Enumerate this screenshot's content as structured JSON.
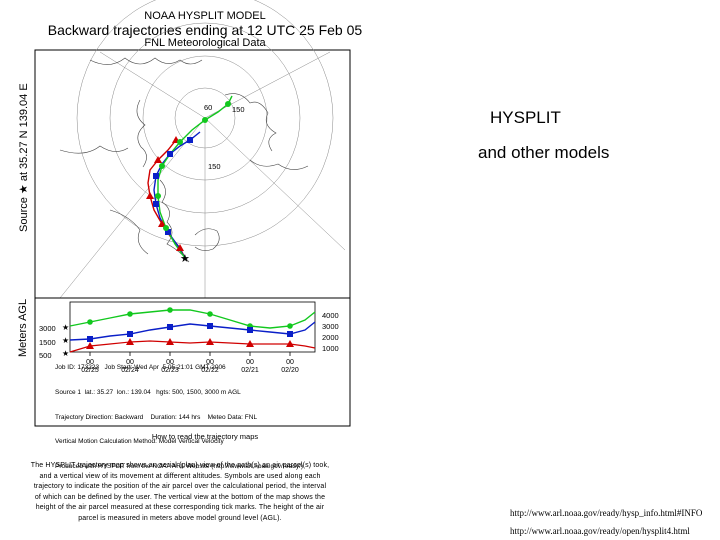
{
  "chart": {
    "title_line1": "NOAA HYSPLIT MODEL",
    "title_line2": "Backward trajectories ending at 12 UTC 25 Feb 05",
    "title_line3": "FNL  Meteorological Data",
    "side_label_source": "Source ★ at 35.27 N 139.04 E",
    "side_label_agl": "Meters AGL",
    "map_labels": [
      "150",
      "150",
      "60"
    ],
    "left_axis_labels": [
      "3000",
      "1500",
      "500"
    ],
    "right_axis_labels": [
      "4000",
      "3000",
      "2000",
      "1000"
    ],
    "date_ticks": [
      {
        "top": "00",
        "bottom": "02/25"
      },
      {
        "top": "00",
        "bottom": "02/24"
      },
      {
        "top": "00",
        "bottom": "02/23"
      },
      {
        "top": "00",
        "bottom": "02/22"
      },
      {
        "top": "00",
        "bottom": "02/21"
      },
      {
        "top": "00",
        "bottom": "02/20"
      }
    ],
    "metadata_lines": [
      "Job ID: 173223   Job Start: Wed Apr  5 05:21:01 GMT 2006",
      "Source 1  lat.: 35.27  lon.: 139.04   hgts: 500, 1500, 3000 m AGL",
      "Trajectory Direction: Backward    Duration: 144 hrs    Meteo Data: FNL",
      "Vertical Motion Calculation Method: Model Vertical Velocity",
      "Produced with HYSPLIT from the NOAA ARL Website (http://www.arl.noaa.gov/ready/)"
    ]
  },
  "series_colors": {
    "red": "#d00000",
    "blue": "#0a1fc8",
    "green": "#12c81e",
    "source": "#000000"
  },
  "slide": {
    "title": "HYSPLIT",
    "subtitle": "and other models"
  },
  "howto": {
    "heading": "How to read the trajectory maps",
    "body": "The HYSPLIT trajectory map shows an aerial (plan) view of the path(s) an air parcel(s) took, and a vertical view of its movement at different altitudes. Symbols are used along each trajectory to indicate the position of the air parcel over the calculational period, the interval of which can be defined by the user. The vertical view at the bottom of the map shows the height of the air parcel measured at these corresponding tick marks. The height of the air parcel is measured in meters above model ground level (AGL)."
  },
  "links": {
    "url1": "http://www.arl.noaa.gov/ready/hysp_info.html#INFO",
    "url2": "http://www.arl.noaa.gov/ready/open/hysplit4.html"
  }
}
